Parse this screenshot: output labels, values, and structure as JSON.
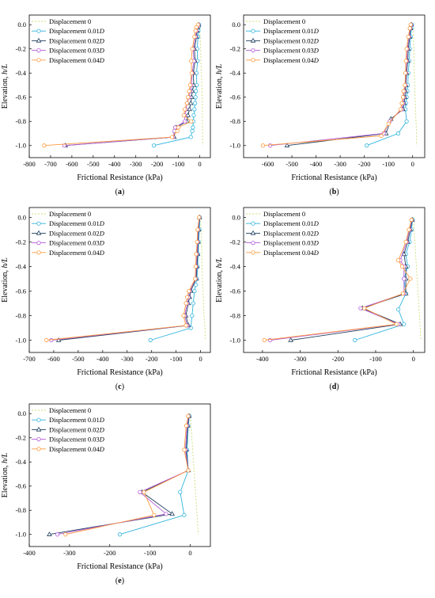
{
  "figure": {
    "colors": {
      "Displacement 0": "#c8e07a",
      "Displacement 0.01D": "#2fb4de",
      "Displacement 0.02D": "#1f3f5e",
      "Displacement 0.03D": "#b45cd8",
      "Displacement 0.04D": "#ff9a3c"
    },
    "legend_entries": [
      {
        "prefix": "Displacement ",
        "value": "0",
        "italic": ""
      },
      {
        "prefix": "Displacement ",
        "value": "0.01",
        "italic": "D"
      },
      {
        "prefix": "Displacement ",
        "value": "0.02",
        "italic": "D"
      },
      {
        "prefix": "Displacement ",
        "value": "0.03",
        "italic": "D"
      },
      {
        "prefix": "Displacement ",
        "value": "0.04",
        "italic": "D"
      }
    ],
    "ylabel_prefix": "Elevation, ",
    "ylabel_italic": "h/L",
    "xlabel": "Frictional Resistance (kPa)"
  },
  "chart_data": [
    {
      "panel": "(a)",
      "type": "line",
      "xlim": [
        -800,
        50
      ],
      "ylim": [
        -1.1,
        0.08
      ],
      "xticks": [
        -800,
        -700,
        -600,
        -500,
        -400,
        -300,
        -200,
        -100,
        0
      ],
      "yticks": [
        0.0,
        -0.2,
        -0.4,
        -0.6,
        -0.8,
        -1.0
      ],
      "legend_position": "top-left",
      "series": [
        {
          "name": "Displacement 0",
          "x": [
            -2,
            0,
            2,
            3,
            4,
            5,
            6,
            7,
            8,
            9,
            10,
            11,
            11,
            12,
            12,
            13,
            13,
            14
          ],
          "y": [
            0.0,
            -0.05,
            -0.1,
            -0.15,
            -0.2,
            -0.25,
            -0.3,
            -0.35,
            -0.4,
            -0.45,
            -0.5,
            -0.55,
            -0.6,
            -0.65,
            -0.7,
            -0.8,
            -0.9,
            -1.0
          ]
        },
        {
          "name": "Displacement 0.01D",
          "x": [
            -3,
            -5,
            -6,
            -8,
            -12,
            -10,
            -15,
            -14,
            -18,
            -20,
            -22,
            -25,
            -28,
            -30,
            -32,
            -35,
            -42,
            -215
          ],
          "y": [
            0.0,
            -0.02,
            -0.05,
            -0.1,
            -0.2,
            -0.3,
            -0.4,
            -0.5,
            -0.55,
            -0.6,
            -0.65,
            -0.7,
            -0.75,
            -0.8,
            -0.85,
            -0.88,
            -0.93,
            -1.0
          ]
        },
        {
          "name": "Displacement 0.02D",
          "x": [
            -5,
            -10,
            -12,
            -15,
            -25,
            -22,
            -30,
            -28,
            -35,
            -38,
            -42,
            -48,
            -55,
            -60,
            -110,
            -115,
            -120,
            -630
          ],
          "y": [
            0.0,
            -0.02,
            -0.05,
            -0.1,
            -0.2,
            -0.3,
            -0.4,
            -0.5,
            -0.55,
            -0.6,
            -0.65,
            -0.7,
            -0.75,
            -0.8,
            -0.85,
            -0.88,
            -0.93,
            -1.0
          ]
        },
        {
          "name": "Displacement 0.03D",
          "x": [
            -6,
            -12,
            -15,
            -20,
            -30,
            -28,
            -35,
            -40,
            -45,
            -50,
            -60,
            -65,
            -70,
            -70,
            -115,
            -118,
            -125,
            -635
          ],
          "y": [
            0.0,
            -0.02,
            -0.05,
            -0.1,
            -0.2,
            -0.3,
            -0.4,
            -0.5,
            -0.55,
            -0.6,
            -0.65,
            -0.7,
            -0.75,
            -0.8,
            -0.85,
            -0.88,
            -0.93,
            -1.0
          ]
        },
        {
          "name": "Displacement 0.04D",
          "x": [
            -8,
            -15,
            -20,
            -25,
            -35,
            -40,
            -38,
            -45,
            -50,
            -55,
            -60,
            -70,
            -75,
            -40,
            -100,
            -105,
            -130,
            -730
          ],
          "y": [
            0.0,
            -0.02,
            -0.05,
            -0.1,
            -0.2,
            -0.3,
            -0.4,
            -0.5,
            -0.55,
            -0.6,
            -0.65,
            -0.7,
            -0.75,
            -0.8,
            -0.85,
            -0.88,
            -0.93,
            -1.0
          ]
        }
      ]
    },
    {
      "panel": "(b)",
      "type": "line",
      "xlim": [
        -700,
        50
      ],
      "ylim": [
        -1.1,
        0.08
      ],
      "xticks": [
        -600,
        -500,
        -400,
        -300,
        -200,
        -100,
        0
      ],
      "yticks": [
        0.0,
        -0.2,
        -0.4,
        -0.6,
        -0.8,
        -1.0
      ],
      "legend_position": "top-left",
      "series": [
        {
          "name": "Displacement 0",
          "x": [
            0,
            2,
            3,
            5,
            6,
            7,
            8,
            9,
            10,
            11,
            12,
            13,
            14,
            15,
            16,
            17
          ],
          "y": [
            0.0,
            -0.05,
            -0.1,
            -0.2,
            -0.3,
            -0.4,
            -0.5,
            -0.55,
            -0.6,
            -0.65,
            -0.7,
            -0.75,
            -0.8,
            -0.85,
            -0.9,
            -1.0
          ]
        },
        {
          "name": "Displacement 0.01D",
          "x": [
            -3,
            -5,
            -8,
            -12,
            -14,
            -18,
            -20,
            -22,
            -25,
            -28,
            -30,
            -25,
            -60,
            -190
          ],
          "y": [
            0.0,
            -0.03,
            -0.1,
            -0.2,
            -0.3,
            -0.4,
            -0.5,
            -0.55,
            -0.6,
            -0.65,
            -0.7,
            -0.8,
            -0.9,
            -1.0
          ]
        },
        {
          "name": "Displacement 0.02D",
          "x": [
            -5,
            -8,
            -12,
            -18,
            -20,
            -25,
            -28,
            -30,
            -32,
            -35,
            -40,
            -90,
            -110,
            -520
          ],
          "y": [
            0.0,
            -0.03,
            -0.1,
            -0.2,
            -0.3,
            -0.4,
            -0.5,
            -0.55,
            -0.6,
            -0.65,
            -0.7,
            -0.78,
            -0.9,
            -1.0
          ]
        },
        {
          "name": "Displacement 0.03D",
          "x": [
            -6,
            -10,
            -15,
            -22,
            -25,
            -28,
            -30,
            -35,
            -38,
            -40,
            -45,
            -95,
            -120,
            -590
          ],
          "y": [
            0.0,
            -0.03,
            -0.1,
            -0.2,
            -0.3,
            -0.4,
            -0.5,
            -0.55,
            -0.6,
            -0.65,
            -0.7,
            -0.8,
            -0.9,
            -1.0
          ]
        },
        {
          "name": "Displacement 0.04D",
          "x": [
            -8,
            -12,
            -18,
            -25,
            -28,
            -30,
            -32,
            -38,
            -40,
            -45,
            -50,
            -100,
            -130,
            -620
          ],
          "y": [
            0.0,
            -0.03,
            -0.1,
            -0.2,
            -0.3,
            -0.4,
            -0.5,
            -0.55,
            -0.6,
            -0.65,
            -0.7,
            -0.82,
            -0.92,
            -1.0
          ]
        }
      ]
    },
    {
      "panel": "(c)",
      "type": "line",
      "xlim": [
        -700,
        40
      ],
      "ylim": [
        -1.1,
        0.08
      ],
      "xticks": [
        -700,
        -600,
        -500,
        -400,
        -300,
        -200,
        -100,
        0
      ],
      "yticks": [
        0.0,
        -0.2,
        -0.4,
        -0.6,
        -0.8,
        -1.0
      ],
      "legend_position": "top-left",
      "series": [
        {
          "name": "Displacement 0",
          "x": [
            0,
            2,
            4,
            5,
            6,
            7,
            8,
            10,
            12,
            14,
            16,
            18,
            20
          ],
          "y": [
            0.0,
            -0.1,
            -0.2,
            -0.3,
            -0.4,
            -0.5,
            -0.55,
            -0.6,
            -0.7,
            -0.8,
            -0.85,
            -0.9,
            -1.0
          ]
        },
        {
          "name": "Displacement 0.01D",
          "x": [
            -3,
            -5,
            -8,
            -10,
            -12,
            -15,
            -20,
            -25,
            -30,
            -35,
            -40,
            -205
          ],
          "y": [
            0.0,
            -0.1,
            -0.2,
            -0.3,
            -0.4,
            -0.5,
            -0.55,
            -0.6,
            -0.7,
            -0.8,
            -0.9,
            -1.0
          ]
        },
        {
          "name": "Displacement 0.02D",
          "x": [
            -4,
            -8,
            -10,
            -12,
            -15,
            -18,
            -40,
            -45,
            -50,
            -60,
            -50,
            -580
          ],
          "y": [
            0.0,
            -0.1,
            -0.2,
            -0.3,
            -0.4,
            -0.5,
            -0.6,
            -0.65,
            -0.7,
            -0.8,
            -0.88,
            -1.0
          ]
        },
        {
          "name": "Displacement 0.03D",
          "x": [
            -5,
            -10,
            -12,
            -15,
            -18,
            -20,
            -45,
            -50,
            -55,
            -65,
            -55,
            -610
          ],
          "y": [
            0.0,
            -0.1,
            -0.2,
            -0.3,
            -0.4,
            -0.5,
            -0.6,
            -0.65,
            -0.7,
            -0.8,
            -0.88,
            -1.0
          ]
        },
        {
          "name": "Displacement 0.04D",
          "x": [
            -6,
            -12,
            -14,
            -18,
            -20,
            -22,
            -48,
            -55,
            -60,
            -70,
            -60,
            -630
          ],
          "y": [
            0.0,
            -0.1,
            -0.2,
            -0.3,
            -0.4,
            -0.5,
            -0.6,
            -0.65,
            -0.7,
            -0.8,
            -0.88,
            -1.0
          ]
        }
      ]
    },
    {
      "panel": "(d)",
      "type": "line",
      "xlim": [
        -450,
        30
      ],
      "ylim": [
        -1.1,
        0.08
      ],
      "xticks": [
        -400,
        -300,
        -200,
        -100,
        0
      ],
      "yticks": [
        0.0,
        -0.2,
        -0.4,
        -0.6,
        -0.8,
        -1.0
      ],
      "legend_position": "top-left",
      "series": [
        {
          "name": "Displacement 0",
          "x": [
            0,
            2,
            4,
            6,
            8,
            10,
            12,
            14,
            16,
            18,
            20
          ],
          "y": [
            0.0,
            -0.1,
            -0.2,
            -0.3,
            -0.4,
            -0.5,
            -0.6,
            -0.7,
            -0.8,
            -0.9,
            -1.0
          ]
        },
        {
          "name": "Displacement 0.01D",
          "x": [
            -2,
            -5,
            -10,
            -20,
            -15,
            -25,
            -20,
            -40,
            -25,
            -155
          ],
          "y": [
            -0.02,
            -0.1,
            -0.2,
            -0.3,
            -0.4,
            -0.5,
            -0.62,
            -0.75,
            -0.87,
            -1.0
          ]
        },
        {
          "name": "Displacement 0.02D",
          "x": [
            -3,
            -8,
            -15,
            -25,
            -20,
            -20,
            -20,
            -135,
            -35,
            -325
          ],
          "y": [
            -0.02,
            -0.1,
            -0.2,
            -0.3,
            -0.4,
            -0.5,
            -0.62,
            -0.74,
            -0.87,
            -1.0
          ]
        },
        {
          "name": "Displacement 0.03D",
          "x": [
            -4,
            -10,
            -18,
            -35,
            -25,
            -25,
            -25,
            -140,
            -40,
            -380
          ],
          "y": [
            -0.02,
            -0.1,
            -0.2,
            -0.35,
            -0.4,
            -0.5,
            -0.62,
            -0.74,
            -0.87,
            -1.0
          ]
        },
        {
          "name": "Displacement 0.04D",
          "x": [
            -5,
            -12,
            -20,
            -40,
            -30,
            -8,
            -28,
            -130,
            -45,
            -395
          ],
          "y": [
            -0.02,
            -0.1,
            -0.2,
            -0.35,
            -0.4,
            -0.5,
            -0.62,
            -0.74,
            -0.87,
            -1.0
          ]
        }
      ]
    },
    {
      "panel": "(e)",
      "type": "line",
      "xlim": [
        -400,
        50
      ],
      "ylim": [
        -1.1,
        0.08
      ],
      "xticks": [
        -400,
        -300,
        -200,
        -100,
        0
      ],
      "yticks": [
        0.0,
        -0.2,
        -0.4,
        -0.6,
        -0.8,
        -1.0
      ],
      "legend_position": "top-left",
      "series": [
        {
          "name": "Displacement 0",
          "x": [
            0,
            2,
            4,
            6,
            8,
            10,
            12,
            14,
            16,
            18,
            20
          ],
          "y": [
            0.0,
            -0.1,
            -0.2,
            -0.3,
            -0.4,
            -0.5,
            -0.6,
            -0.7,
            -0.8,
            -0.9,
            -1.0
          ]
        },
        {
          "name": "Displacement 0.01D",
          "x": [
            -2,
            -5,
            -8,
            -5,
            -25,
            -15,
            -175
          ],
          "y": [
            -0.02,
            -0.1,
            -0.3,
            -0.47,
            -0.65,
            -0.84,
            -1.0
          ]
        },
        {
          "name": "Displacement 0.02D",
          "x": [
            -3,
            -6,
            -10,
            -5,
            -120,
            -45,
            -350
          ],
          "y": [
            -0.02,
            -0.1,
            -0.3,
            -0.47,
            -0.65,
            -0.83,
            -1.0
          ]
        },
        {
          "name": "Displacement 0.03D",
          "x": [
            -4,
            -8,
            -12,
            -5,
            -125,
            -60,
            -330
          ],
          "y": [
            -0.02,
            -0.1,
            -0.3,
            -0.47,
            -0.65,
            -0.83,
            -1.0
          ]
        },
        {
          "name": "Displacement 0.04D",
          "x": [
            -5,
            -10,
            -15,
            -5,
            -115,
            -90,
            -310
          ],
          "y": [
            -0.02,
            -0.1,
            -0.3,
            -0.47,
            -0.65,
            -0.84,
            -1.0
          ]
        }
      ]
    }
  ]
}
